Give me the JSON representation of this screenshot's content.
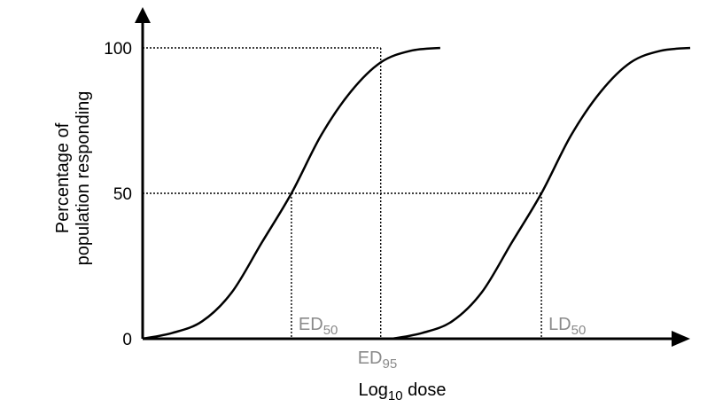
{
  "chart_data": {
    "type": "line",
    "xlabel": {
      "text": "Log",
      "subscript": "10",
      "suffix": " dose"
    },
    "ylabel": [
      "Percentage of",
      "population responding"
    ],
    "y_ticks": [
      "100",
      "50",
      "0"
    ],
    "ylim": [
      0,
      100
    ],
    "series": [
      {
        "x": [
          0.0,
          0.5,
          1.0,
          1.5,
          2.0,
          2.5,
          3.0,
          3.5,
          4.0,
          4.5,
          5.0
        ],
        "values": [
          0,
          2,
          6,
          16,
          33,
          50,
          70,
          85,
          95,
          99,
          100
        ]
      },
      {
        "x": [
          4.2,
          4.7,
          5.2,
          5.7,
          6.2,
          6.7,
          7.2,
          7.7,
          8.2,
          8.7,
          9.2
        ],
        "values": [
          0,
          2,
          6,
          16,
          33,
          50,
          70,
          85,
          95,
          99,
          100
        ]
      }
    ],
    "annotations": [
      {
        "base": "ED",
        "sub": "50",
        "x": 2.5,
        "y": 50
      },
      {
        "base": "ED",
        "sub": "95",
        "x": 4.0,
        "y": 95
      },
      {
        "base": "LD",
        "sub": "50",
        "x": 6.7,
        "y": 50
      }
    ],
    "grid": false,
    "colors": {
      "curve": "#000000",
      "annotation": "#8a8a8a",
      "guide_line": "#000000"
    }
  }
}
